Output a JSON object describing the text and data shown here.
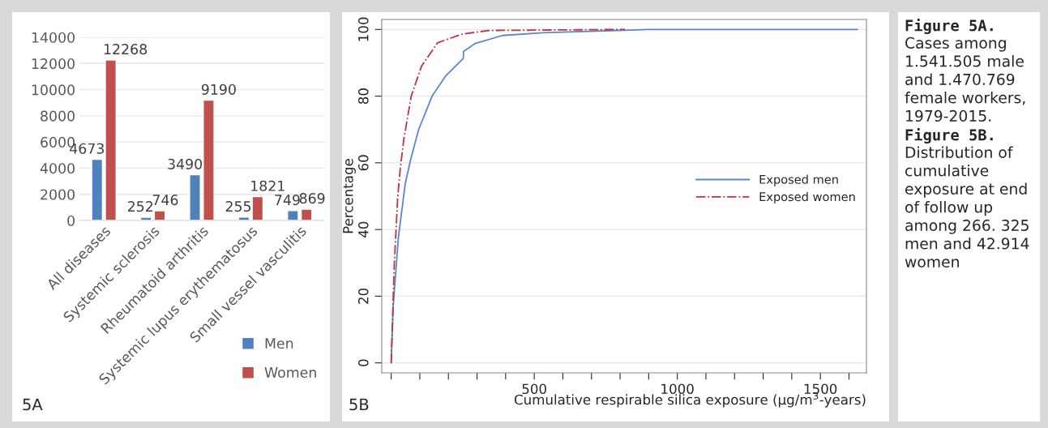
{
  "chart_data": [
    {
      "type": "bar",
      "categories": [
        "All diseases",
        "Systemic sclerosis",
        "Rheumatoid arthritis",
        "Systemic lupus erythematosus",
        "Small vessel vasculitis"
      ],
      "series": [
        {
          "name": "Men",
          "color": "#4f81bd",
          "values": [
            4673,
            252,
            3490,
            255,
            749
          ]
        },
        {
          "name": "Women",
          "color": "#c0504d",
          "values": [
            12268,
            746,
            9190,
            1821,
            869
          ]
        }
      ],
      "ylim": [
        0,
        14000
      ],
      "yticks": [
        0,
        2000,
        4000,
        6000,
        8000,
        10000,
        12000,
        14000
      ],
      "grid": "y",
      "data_labels": true,
      "legend": "bottom right",
      "annotations": [
        "5A"
      ]
    },
    {
      "type": "line",
      "xlabel": "Cumulative respirable silica exposure (µg/m$^{3}$-years)",
      "ylabel": "Percentage",
      "series": [
        {
          "name": "Exposed men",
          "color": "#5b86d0",
          "line_style": "solid",
          "x": [
            0,
            7,
            25,
            49,
            68,
            96,
            143,
            190,
            252,
            253,
            294,
            389,
            530,
            900,
            1630
          ],
          "values": [
            0,
            17,
            37.5,
            53.7,
            61,
            70,
            80,
            86,
            91.3,
            93.4,
            95.8,
            98.2,
            99,
            100,
            100
          ]
        },
        {
          "name": "Exposed women",
          "color": "#c8303c",
          "line_style": "dashdot",
          "x": [
            0,
            11,
            23,
            32,
            44,
            70,
            106,
            162,
            247,
            341,
            817
          ],
          "values": [
            0,
            30,
            50,
            58.5,
            67,
            80,
            89,
            96,
            98.6,
            99.7,
            100
          ]
        }
      ],
      "xlim": [
        -33,
        1661
      ],
      "xticks": [
        {
          "value": 0,
          "label": null
        },
        {
          "value": 100,
          "label": null
        },
        {
          "value": 200,
          "label": null
        },
        {
          "value": 300,
          "label": null
        },
        {
          "value": 400,
          "label": null
        },
        500,
        {
          "value": 600,
          "label": null
        },
        {
          "value": 700,
          "label": null
        },
        {
          "value": 800,
          "label": null
        },
        {
          "value": 900,
          "label": null
        },
        1000,
        {
          "value": 1100,
          "label": null
        },
        {
          "value": 1200,
          "label": null
        },
        {
          "value": 1300,
          "label": null
        },
        {
          "value": 1400,
          "label": null
        },
        1500,
        {
          "value": 1600,
          "label": null
        }
      ],
      "ylim": [
        -3,
        103
      ],
      "yticks": [
        0,
        20,
        40,
        60,
        80,
        100
      ],
      "grid": "y",
      "legend": "right",
      "marker": "none",
      "annotations": [
        "5B"
      ]
    },
    {
      "type": "other",
      "annotations": [
        "Figure 5A.",
        "Cases among 1.541.505 male and 1.470.769 female workers, 1979-2015.",
        "Figure 5B.",
        "Distribution of cumulative exposure at end of follow up among 266. 325 men and 42.914 women"
      ]
    }
  ]
}
